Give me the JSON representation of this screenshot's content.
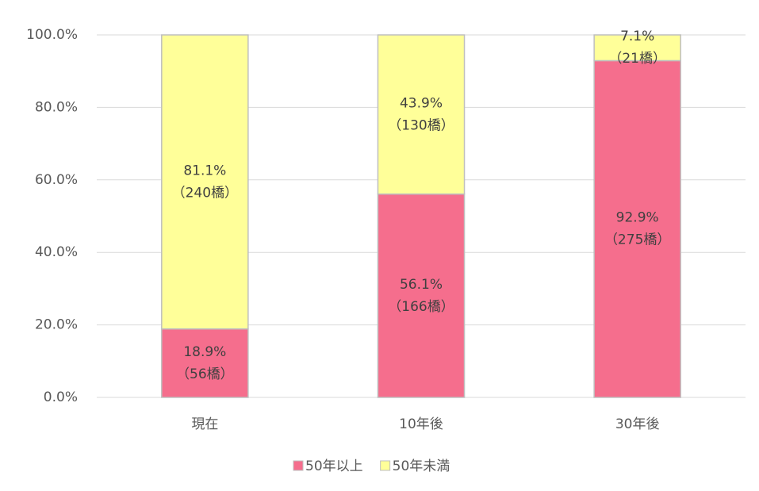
{
  "chart_data": {
    "type": "stacked_bar",
    "categories": [
      "現在",
      "10年後",
      "30年後"
    ],
    "series": [
      {
        "name": "50年以上",
        "color": "#f56e8d",
        "values": [
          18.9,
          56.1,
          92.9
        ],
        "value_labels": [
          "18.9%",
          "56.1%",
          "92.9%"
        ],
        "count_labels": [
          "（56橋）",
          "（166橋）",
          "（275橋）"
        ]
      },
      {
        "name": "50年未満",
        "color": "#ffff99",
        "values": [
          81.1,
          43.9,
          7.1
        ],
        "value_labels": [
          "81.1%",
          "43.9%",
          "7.1%"
        ],
        "count_labels": [
          "（240橋）",
          "（130橋）",
          "（21橋）"
        ]
      }
    ],
    "ylim": [
      0,
      100
    ],
    "yticks": [
      {
        "value": 0,
        "label": "0.0%"
      },
      {
        "value": 20,
        "label": "20.0%"
      },
      {
        "value": 40,
        "label": "40.0%"
      },
      {
        "value": 60,
        "label": "60.0%"
      },
      {
        "value": 80,
        "label": "80.0%"
      },
      {
        "value": 100,
        "label": "100.0%"
      }
    ],
    "grid": true,
    "legend": "bottom"
  }
}
